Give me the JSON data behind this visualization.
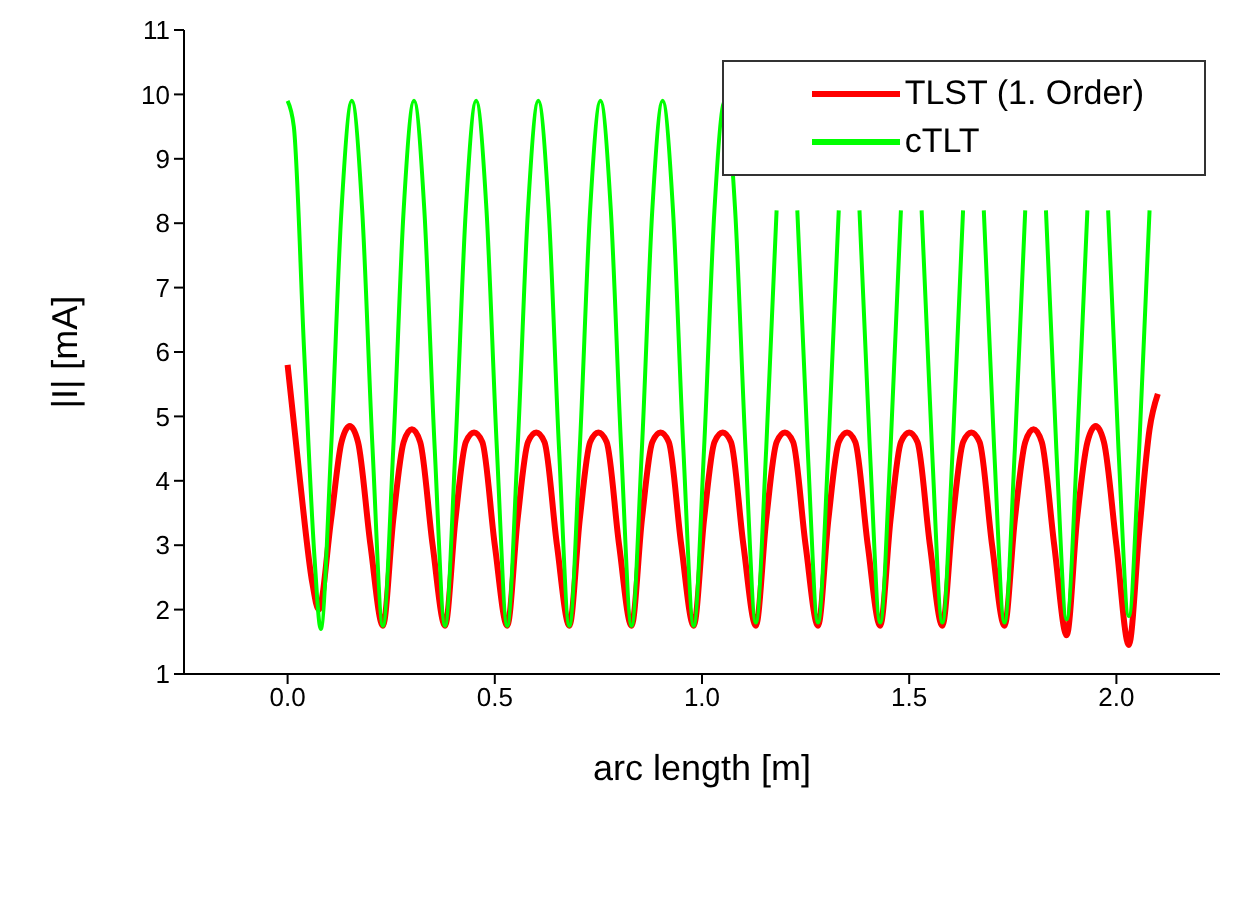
{
  "chart_data": {
    "type": "line",
    "xlabel": "arc length  [m]",
    "ylabel": "|I|  [mA]",
    "xlim": [
      -0.25,
      2.25
    ],
    "xticks": [
      {
        "value": 0,
        "label": "0.0"
      },
      {
        "value": 0.5,
        "label": "0.5"
      },
      {
        "value": 1,
        "label": "1.0"
      },
      {
        "value": 1.5,
        "label": "1.5"
      },
      {
        "value": 2,
        "label": "2.0"
      }
    ],
    "ylim": [
      1,
      11
    ],
    "yticks": [
      1,
      2,
      3,
      4,
      5,
      6,
      7,
      8,
      9,
      10,
      11
    ],
    "grid": false,
    "legend": "top right",
    "marker": "none",
    "line_style": "solid",
    "series": [
      {
        "name": "TLST (1. Order)",
        "color": "#ff0000",
        "x": [
          0,
          0.03,
          0.06,
          0.075,
          0.105,
          0.13,
          0.15,
          0.17,
          0.2,
          0.23,
          0.255,
          0.28,
          0.3,
          0.32,
          0.35,
          0.38,
          0.405,
          0.43,
          0.45,
          0.47,
          0.5,
          0.53,
          0.555,
          0.58,
          0.6,
          0.62,
          0.65,
          0.68,
          0.705,
          0.73,
          0.75,
          0.77,
          0.8,
          0.83,
          0.855,
          0.88,
          0.9,
          0.92,
          0.95,
          0.98,
          1.005,
          1.03,
          1.05,
          1.07,
          1.1,
          1.13,
          1.155,
          1.18,
          1.2,
          1.22,
          1.25,
          1.28,
          1.305,
          1.33,
          1.35,
          1.37,
          1.4,
          1.43,
          1.455,
          1.48,
          1.5,
          1.52,
          1.55,
          1.58,
          1.605,
          1.63,
          1.65,
          1.67,
          1.7,
          1.73,
          1.755,
          1.78,
          1.8,
          1.82,
          1.85,
          1.88,
          1.905,
          1.93,
          1.95,
          1.97,
          2.0,
          2.03,
          2.055,
          2.08,
          2.1
        ],
        "values": [
          5.8,
          4.0,
          2.4,
          2.0,
          3.4,
          4.6,
          4.85,
          4.6,
          3.0,
          1.75,
          3.4,
          4.6,
          4.8,
          4.6,
          3.0,
          1.75,
          3.4,
          4.6,
          4.75,
          4.6,
          3.0,
          1.75,
          3.4,
          4.6,
          4.75,
          4.6,
          3.0,
          1.75,
          3.4,
          4.6,
          4.75,
          4.6,
          3.0,
          1.75,
          3.4,
          4.6,
          4.75,
          4.6,
          3.0,
          1.75,
          3.4,
          4.6,
          4.75,
          4.6,
          3.0,
          1.75,
          3.4,
          4.6,
          4.75,
          4.6,
          3.0,
          1.75,
          3.4,
          4.6,
          4.75,
          4.6,
          3.0,
          1.75,
          3.4,
          4.6,
          4.75,
          4.6,
          3.0,
          1.75,
          3.4,
          4.6,
          4.75,
          4.6,
          3.0,
          1.75,
          3.4,
          4.6,
          4.8,
          4.6,
          3.0,
          1.6,
          3.4,
          4.6,
          4.85,
          4.6,
          3.0,
          1.45,
          3.2,
          4.8,
          5.35
        ]
      },
      {
        "name": "cTLT",
        "color": "#00ff00",
        "x": [
          0,
          0.015,
          0.04,
          0.065,
          0.08,
          0.105,
          0.13,
          0.155,
          0.18,
          0.205,
          0.23,
          0.255,
          0.28,
          0.305,
          0.33,
          0.355,
          0.38,
          0.405,
          0.43,
          0.455,
          0.48,
          0.505,
          0.53,
          0.555,
          0.58,
          0.605,
          0.63,
          0.655,
          0.68,
          0.705,
          0.73,
          0.755,
          0.78,
          0.805,
          0.83,
          0.855,
          0.88,
          0.905,
          0.93,
          0.955,
          0.98,
          1.005,
          1.03,
          1.055,
          1.08,
          1.105,
          1.13,
          1.155,
          1.18,
          1.205,
          1.23,
          1.255,
          1.28,
          1.305,
          1.33,
          1.355,
          1.38,
          1.405,
          1.43,
          1.455,
          1.48,
          1.505,
          1.53,
          1.555,
          1.58,
          1.605,
          1.63,
          1.655,
          1.68,
          1.705,
          1.73,
          1.755,
          1.78,
          1.805,
          1.83,
          1.855,
          1.88,
          1.905,
          1.93,
          1.955,
          1.98,
          2.005,
          2.03,
          2.055,
          2.08
        ],
        "values": [
          9.9,
          9.5,
          6.0,
          2.8,
          1.7,
          4.5,
          8.2,
          9.9,
          8.2,
          4.5,
          1.75,
          4.5,
          8.2,
          9.9,
          8.2,
          4.5,
          1.75,
          4.5,
          8.2,
          9.9,
          8.2,
          4.5,
          1.75,
          4.5,
          8.2,
          9.9,
          8.2,
          4.5,
          1.75,
          4.5,
          8.2,
          9.9,
          8.2,
          4.5,
          1.75,
          4.5,
          8.2,
          9.9,
          8.2,
          4.5,
          1.75,
          4.5,
          8.2,
          9.9,
          8.2,
          4.5,
          1.8,
          4.5,
          8.2,
          null,
          8.2,
          4.5,
          1.8,
          4.5,
          8.2,
          null,
          8.2,
          4.5,
          1.8,
          4.5,
          8.2,
          null,
          8.2,
          4.5,
          1.8,
          4.5,
          8.2,
          null,
          8.2,
          4.5,
          1.8,
          4.5,
          8.2,
          null,
          8.2,
          4.5,
          1.85,
          4.5,
          8.2,
          null,
          8.2,
          4.5,
          1.9,
          4.5,
          8.2
        ]
      }
    ]
  }
}
